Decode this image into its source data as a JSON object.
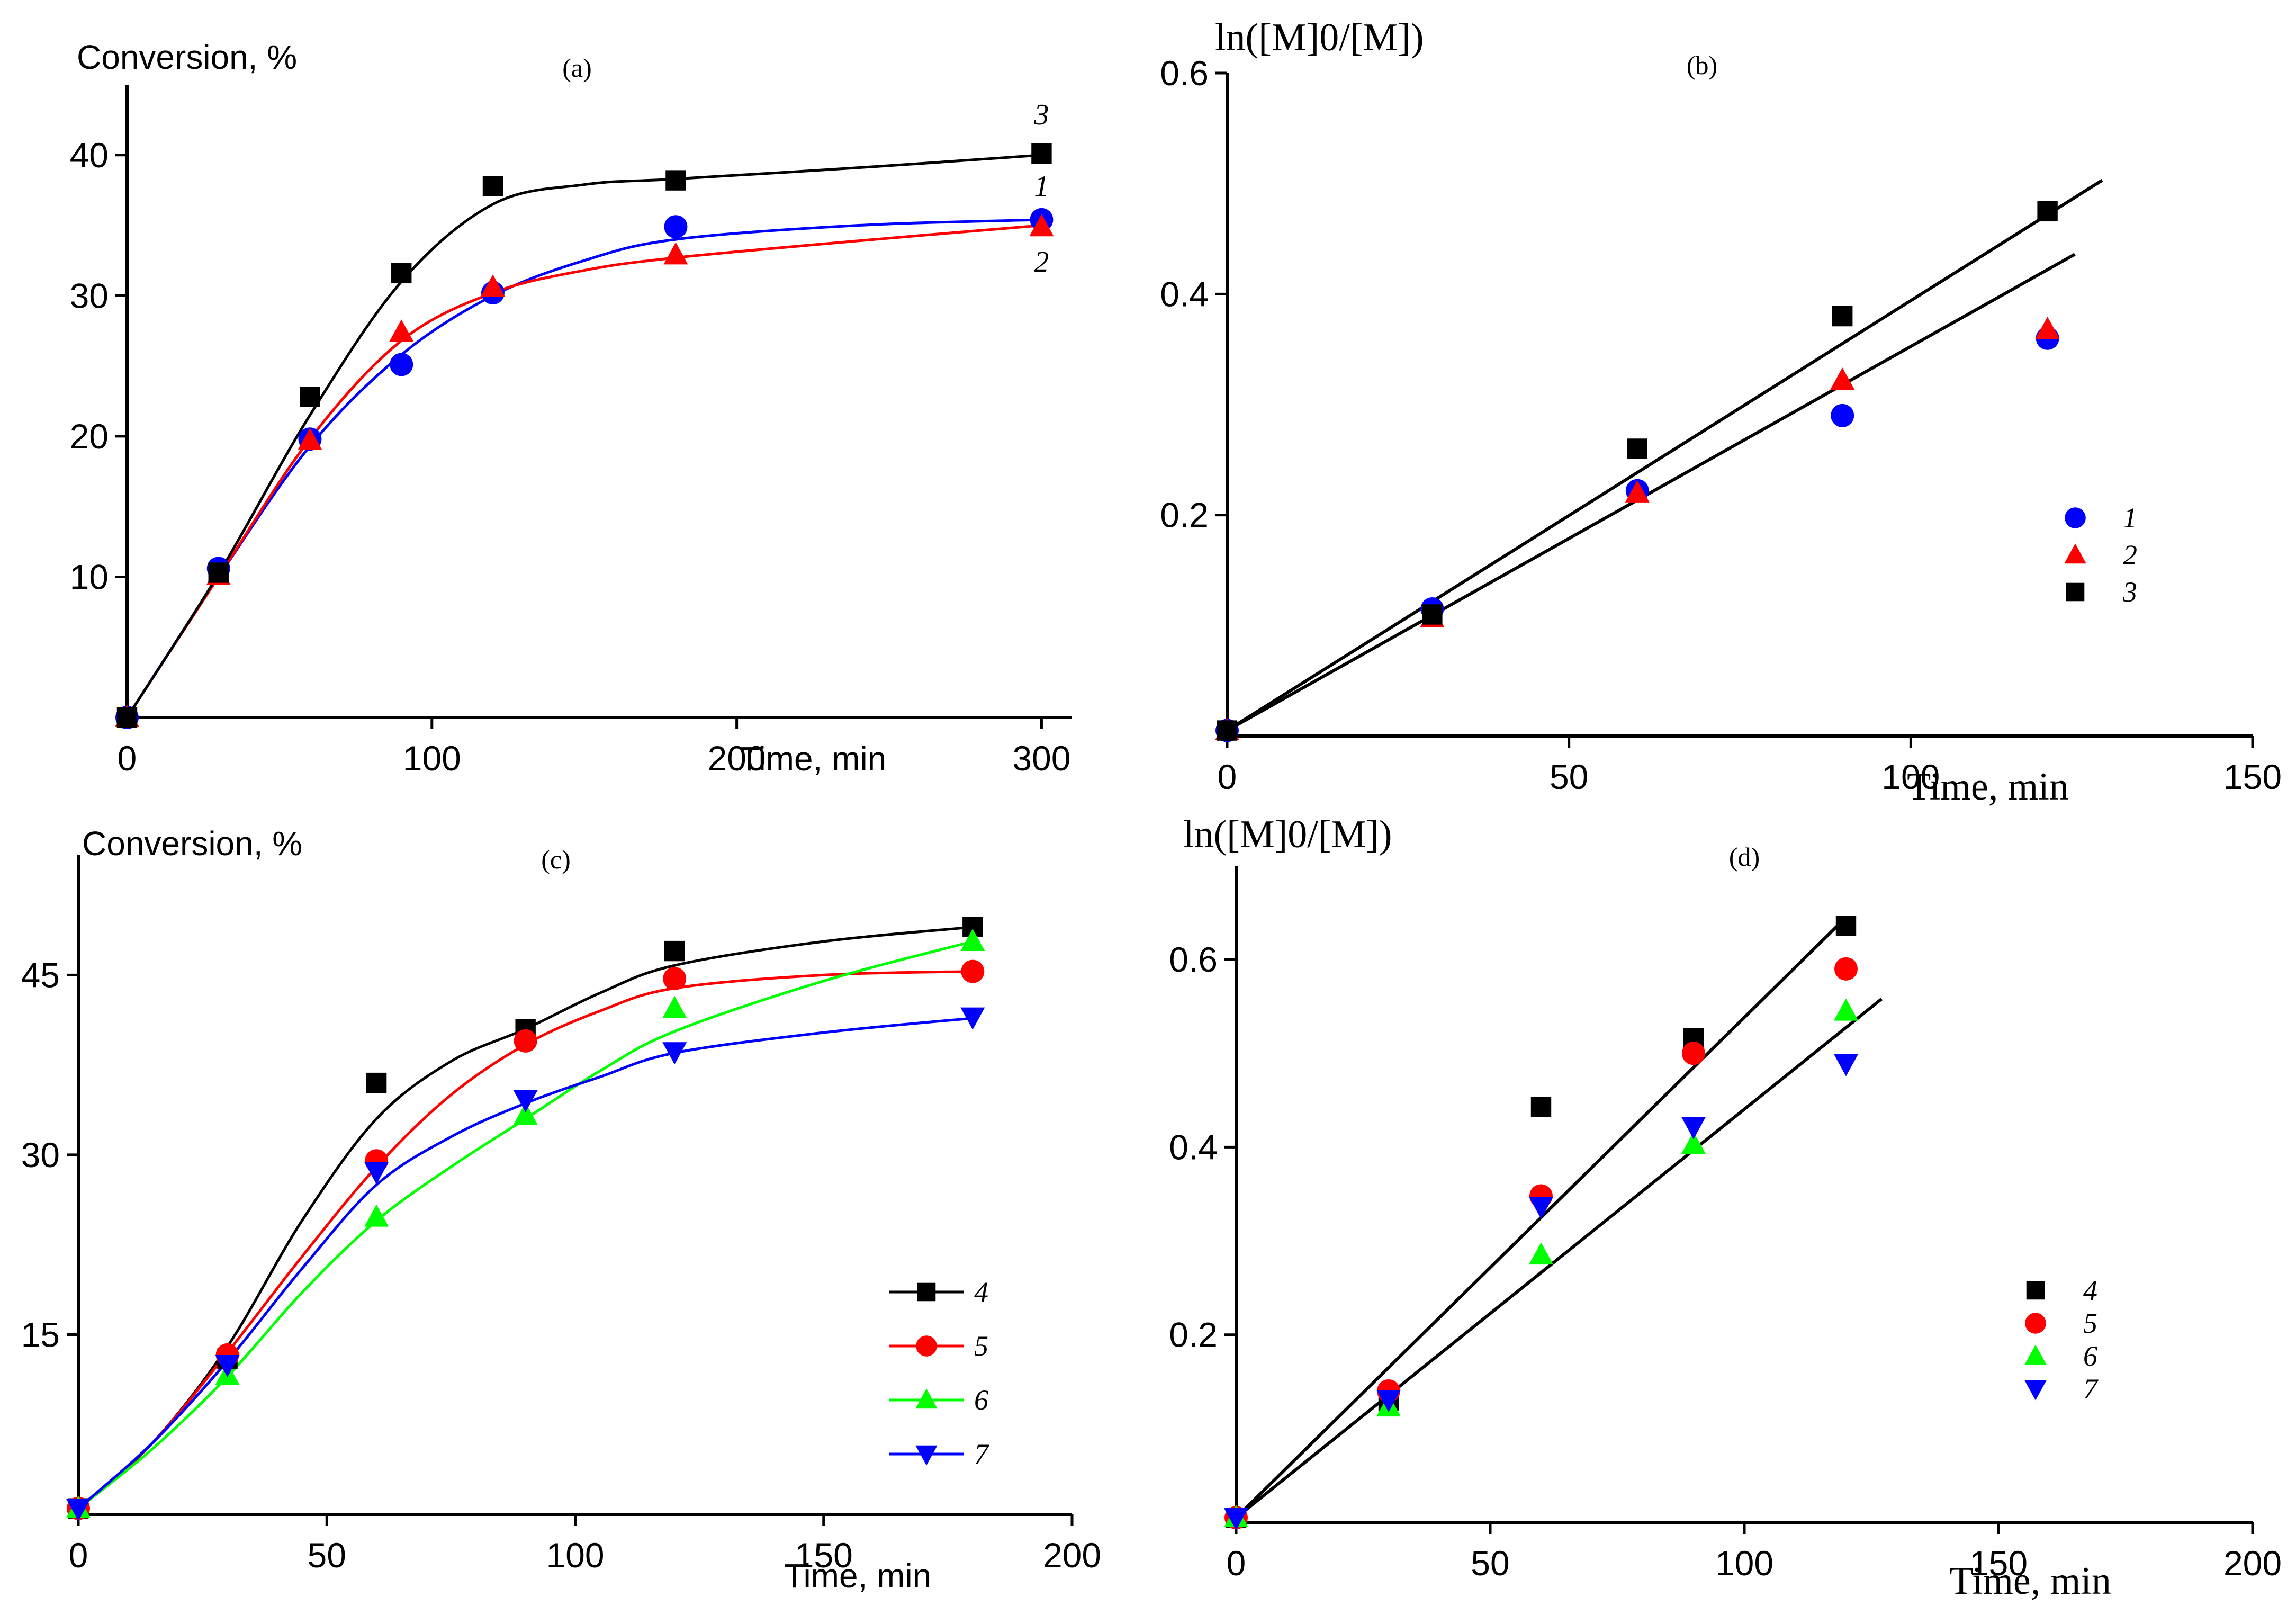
{
  "chart_data": [
    {
      "panel": "a",
      "type": "line",
      "title": "(a)",
      "ylabel": "Conversion, %",
      "xlabel": "Time, min",
      "xlim": [
        0,
        310
      ],
      "ylim": [
        0,
        45
      ],
      "xticks": [
        0,
        100,
        200,
        300
      ],
      "yticks": [
        10,
        20,
        30,
        40
      ],
      "legend": "curve-labels",
      "series": [
        {
          "name": "1",
          "color": "#0000ff",
          "marker": "circle",
          "x": [
            0,
            30,
            60,
            90,
            120,
            180,
            300
          ],
          "y": [
            0,
            10.6,
            19.8,
            25.1,
            30.2,
            34.9,
            35.4
          ]
        },
        {
          "name": "2",
          "color": "#ff0000",
          "marker": "triangle-up",
          "x": [
            0,
            30,
            60,
            90,
            120,
            180,
            300
          ],
          "y": [
            0,
            10.1,
            19.7,
            27.4,
            30.6,
            32.9,
            34.9
          ]
        },
        {
          "name": "3",
          "color": "#000000",
          "marker": "square",
          "x": [
            0,
            30,
            60,
            90,
            120,
            180,
            300
          ],
          "y": [
            0,
            10.3,
            22.8,
            31.6,
            37.8,
            38.2,
            40.1
          ]
        }
      ],
      "fits": [
        {
          "series": "1",
          "color": "#0000ff",
          "x": [
            0,
            30,
            60,
            90,
            120,
            150,
            180,
            240,
            300
          ],
          "y": [
            0,
            10.0,
            19.3,
            25.8,
            30.0,
            32.5,
            34.0,
            35.0,
            35.4
          ]
        },
        {
          "series": "2",
          "color": "#ff0000",
          "x": [
            0,
            30,
            60,
            90,
            120,
            150,
            180,
            240,
            300
          ],
          "y": [
            0,
            10.0,
            19.8,
            26.8,
            30.2,
            31.8,
            32.7,
            33.9,
            35.0
          ]
        },
        {
          "series": "3",
          "color": "#000000",
          "x": [
            0,
            30,
            60,
            90,
            120,
            150,
            180,
            240,
            300
          ],
          "y": [
            0,
            10.2,
            21.5,
            31.0,
            36.5,
            37.9,
            38.3,
            39.1,
            40.0
          ]
        }
      ]
    },
    {
      "panel": "b",
      "type": "scatter",
      "title": "(b)",
      "ylabel": "ln([M]0/[M])",
      "xlabel": "Time, min",
      "xlim": [
        0,
        150
      ],
      "ylim": [
        0,
        0.6
      ],
      "xticks": [
        0,
        50,
        100,
        150
      ],
      "yticks": [
        0.2,
        0.4,
        0.6
      ],
      "legend": "right",
      "series": [
        {
          "name": "1",
          "color": "#0000ff",
          "marker": "circle",
          "x": [
            0,
            30,
            60,
            90,
            120
          ],
          "y": [
            0.005,
            0.115,
            0.222,
            0.29,
            0.36
          ]
        },
        {
          "name": "2",
          "color": "#ff0000",
          "marker": "triangle-up",
          "x": [
            0,
            30,
            60,
            90,
            120
          ],
          "y": [
            0.005,
            0.107,
            0.22,
            0.322,
            0.368
          ]
        },
        {
          "name": "3",
          "color": "#000000",
          "marker": "square",
          "x": [
            0,
            30,
            60,
            90,
            120
          ],
          "y": [
            0.005,
            0.11,
            0.26,
            0.38,
            0.475
          ]
        }
      ],
      "fits": [
        {
          "color": "#000000",
          "x": [
            0,
            128
          ],
          "y": [
            0.005,
            0.503
          ]
        },
        {
          "color": "#000000",
          "x": [
            0,
            124
          ],
          "y": [
            0.005,
            0.436
          ]
        }
      ]
    },
    {
      "panel": "c",
      "type": "line",
      "title": "(c)",
      "ylabel": "Conversion, %",
      "xlabel": "Time, min",
      "xlim": [
        0,
        200
      ],
      "ylim": [
        0,
        55
      ],
      "xticks": [
        0,
        50,
        100,
        150,
        200
      ],
      "yticks": [
        15,
        30,
        45
      ],
      "legend": "right",
      "series": [
        {
          "name": "4",
          "color": "#000000",
          "marker": "square",
          "x": [
            0,
            30,
            60,
            90,
            120,
            180
          ],
          "y": [
            0.5,
            13,
            36,
            40.5,
            47,
            49
          ]
        },
        {
          "name": "5",
          "color": "#ff0000",
          "marker": "circle",
          "x": [
            0,
            30,
            60,
            90,
            120,
            180
          ],
          "y": [
            0.5,
            13.3,
            29.5,
            39.5,
            44.7,
            45.3
          ]
        },
        {
          "name": "6",
          "color": "#00ff00",
          "marker": "triangle-up",
          "x": [
            0,
            30,
            60,
            90,
            120,
            180
          ],
          "y": [
            0.5,
            11.6,
            24.8,
            33.3,
            42.2,
            47.8
          ]
        },
        {
          "name": "7",
          "color": "#0000ff",
          "marker": "triangle-down",
          "x": [
            0,
            30,
            60,
            90,
            120,
            180
          ],
          "y": [
            0.5,
            12.5,
            28.6,
            34.6,
            38.6,
            41.5
          ]
        }
      ],
      "fits": [
        {
          "series": "4",
          "color": "#000000",
          "x": [
            0,
            15,
            30,
            45,
            60,
            75,
            90,
            105,
            120,
            150,
            180
          ],
          "y": [
            0.5,
            6,
            14,
            24.5,
            33,
            37.8,
            40.5,
            43.5,
            45.8,
            47.8,
            49
          ]
        },
        {
          "series": "5",
          "color": "#ff0000",
          "x": [
            0,
            15,
            30,
            45,
            60,
            75,
            90,
            105,
            120,
            150,
            180
          ],
          "y": [
            0.5,
            6,
            13.5,
            21.5,
            29,
            35,
            39.2,
            42,
            43.9,
            45,
            45.3
          ]
        },
        {
          "series": "6",
          "color": "#00ff00",
          "x": [
            0,
            15,
            30,
            45,
            60,
            75,
            90,
            105,
            120,
            150,
            180
          ],
          "y": [
            0.5,
            5.5,
            11.5,
            18.5,
            24.5,
            29,
            33,
            37,
            40.3,
            44.5,
            47.8
          ]
        },
        {
          "series": "7",
          "color": "#0000ff",
          "x": [
            0,
            15,
            30,
            45,
            60,
            75,
            90,
            105,
            120,
            150,
            180
          ],
          "y": [
            0.5,
            6,
            12.8,
            20.5,
            27.5,
            31.5,
            34.3,
            36.5,
            38.5,
            40.2,
            41.4
          ]
        }
      ]
    },
    {
      "panel": "d",
      "type": "scatter",
      "title": "(d)",
      "ylabel": "ln([M]0/[M])",
      "xlabel": "Time, min",
      "xlim": [
        0,
        200
      ],
      "ylim": [
        0,
        0.7
      ],
      "xticks": [
        0,
        50,
        100,
        150,
        200
      ],
      "yticks": [
        0.2,
        0.4,
        0.6
      ],
      "legend": "right",
      "series": [
        {
          "name": "4",
          "color": "#000000",
          "marker": "square",
          "x": [
            0,
            30,
            60,
            90,
            120
          ],
          "y": [
            0.005,
            0.13,
            0.443,
            0.516,
            0.636
          ]
        },
        {
          "name": "5",
          "color": "#ff0000",
          "marker": "circle",
          "x": [
            0,
            30,
            60,
            90,
            120
          ],
          "y": [
            0.005,
            0.14,
            0.348,
            0.5,
            0.59
          ]
        },
        {
          "name": "6",
          "color": "#00ff00",
          "marker": "triangle-up",
          "x": [
            0,
            30,
            60,
            90,
            120
          ],
          "y": [
            0.005,
            0.123,
            0.285,
            0.403,
            0.545
          ]
        },
        {
          "name": "7",
          "color": "#0000ff",
          "marker": "triangle-down",
          "x": [
            0,
            30,
            60,
            90,
            120
          ],
          "y": [
            0.005,
            0.131,
            0.337,
            0.422,
            0.489
          ]
        }
      ],
      "fits": [
        {
          "color": "#000000",
          "x": [
            0,
            120
          ],
          "y": [
            0.005,
            0.645
          ]
        },
        {
          "color": "#000000",
          "x": [
            0,
            127
          ],
          "y": [
            0.005,
            0.558
          ]
        }
      ]
    }
  ]
}
